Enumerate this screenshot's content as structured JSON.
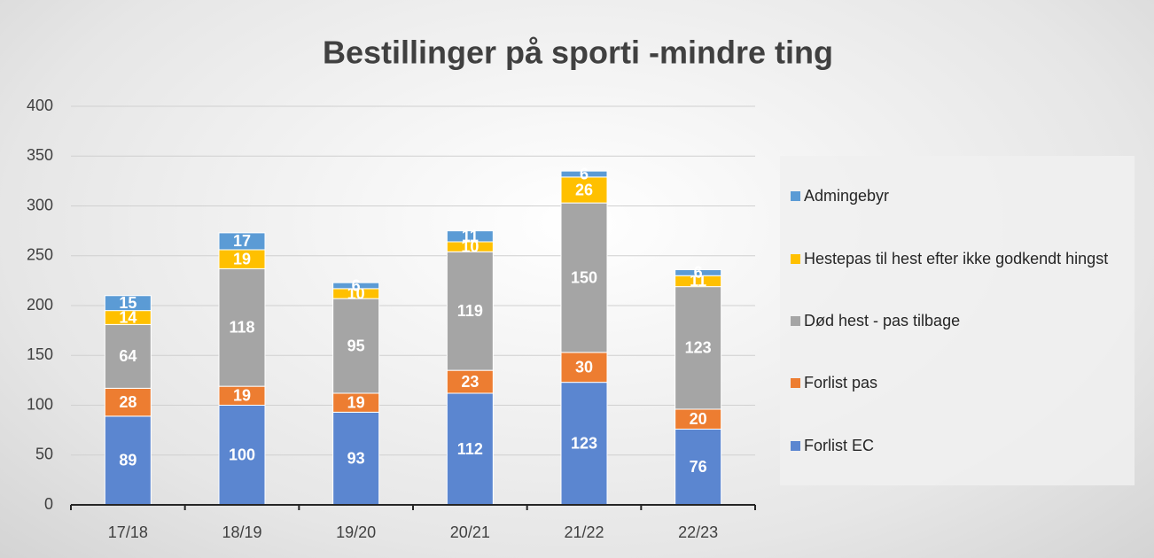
{
  "chart_data": {
    "type": "stacked_bar",
    "title": "Bestillinger på sporti -mindre ting",
    "categories": [
      "17/18",
      "18/19",
      "19/20",
      "20/21",
      "21/22",
      "22/23"
    ],
    "series": [
      {
        "name": "Forlist EC",
        "color": "#5b86d0",
        "values": [
          89,
          100,
          93,
          112,
          123,
          76
        ]
      },
      {
        "name": "Forlist pas",
        "color": "#ed7d31",
        "values": [
          28,
          19,
          19,
          23,
          30,
          20
        ]
      },
      {
        "name": "Død hest - pas tilbage",
        "color": "#a5a5a5",
        "values": [
          64,
          118,
          95,
          119,
          150,
          123
        ]
      },
      {
        "name": "Hestepas til hest efter ikke godkendt hingst",
        "color": "#ffc000",
        "values": [
          14,
          19,
          10,
          10,
          26,
          11
        ]
      },
      {
        "name": "Admingebyr",
        "color": "#5b9bd5",
        "values": [
          15,
          17,
          6,
          11,
          6,
          6
        ]
      }
    ],
    "ylim": [
      0,
      400
    ],
    "yticks": [
      0,
      50,
      100,
      150,
      200,
      250,
      300,
      350,
      400
    ],
    "grid": true,
    "legend": "right"
  }
}
